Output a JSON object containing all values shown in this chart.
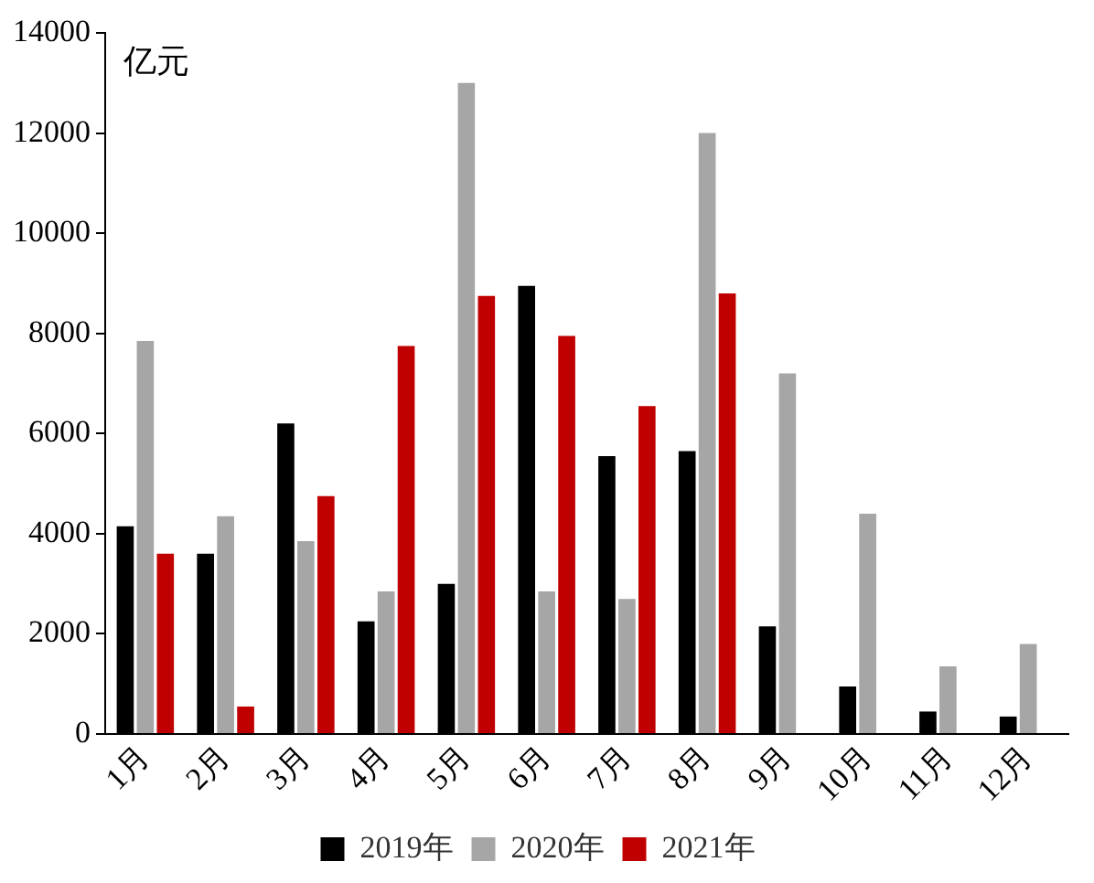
{
  "chart_data": {
    "type": "bar",
    "ylabel": "亿元",
    "categories": [
      "1月",
      "2月",
      "3月",
      "4月",
      "5月",
      "6月",
      "7月",
      "8月",
      "9月",
      "10月",
      "11月",
      "12月"
    ],
    "series": [
      {
        "name": "2019年",
        "color": "#000000",
        "values": [
          4150,
          3600,
          6200,
          2250,
          3000,
          8950,
          5550,
          5650,
          2150,
          950,
          450,
          350
        ]
      },
      {
        "name": "2020年",
        "color": "#a6a6a6",
        "values": [
          7850,
          4350,
          3850,
          2850,
          13000,
          2850,
          2700,
          12000,
          7200,
          4400,
          1350,
          1800
        ]
      },
      {
        "name": "2021年",
        "color": "#c00000",
        "values": [
          3600,
          550,
          4750,
          7750,
          8750,
          7950,
          6550,
          8800,
          null,
          null,
          null,
          null
        ]
      }
    ],
    "ylim": [
      0,
      14000
    ],
    "yticks": [
      0,
      2000,
      4000,
      6000,
      8000,
      10000,
      12000,
      14000
    ],
    "grid": false,
    "legend": "bottom"
  }
}
